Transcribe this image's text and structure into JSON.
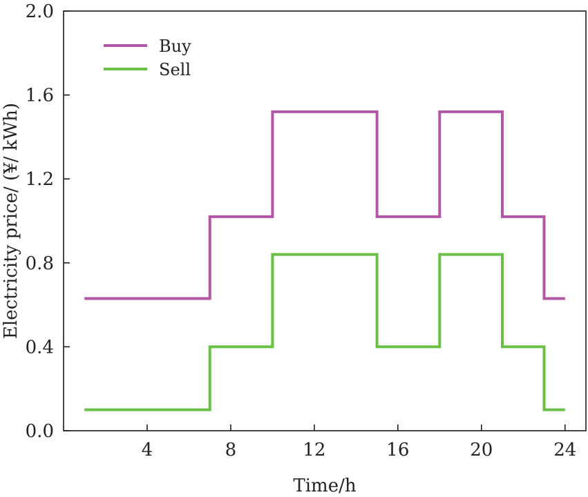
{
  "chart_data": {
    "type": "line",
    "step": true,
    "xlabel": "Time/h",
    "ylabel": "Electricity price/ (¥/ kWh)",
    "xlim": [
      0,
      25
    ],
    "ylim": [
      0,
      2.0
    ],
    "xticks": [
      4,
      8,
      12,
      16,
      20,
      24
    ],
    "yticks": [
      0.0,
      0.4,
      0.8,
      1.2,
      1.6,
      2.0
    ],
    "ytick_labels": [
      "0.0",
      "0.4",
      "0.8",
      "1.2",
      "1.6",
      "2.0"
    ],
    "grid": false,
    "legend_position": "top-left",
    "series": [
      {
        "name": "Buy",
        "color": "#b256a6",
        "x": [
          1,
          7,
          7,
          10,
          10,
          15,
          15,
          18,
          18,
          21,
          21,
          23,
          23,
          24
        ],
        "y": [
          0.63,
          0.63,
          1.02,
          1.02,
          1.52,
          1.52,
          1.02,
          1.02,
          1.52,
          1.52,
          1.02,
          1.02,
          0.63,
          0.63
        ]
      },
      {
        "name": "Sell",
        "color": "#6abf45",
        "x": [
          1,
          7,
          7,
          10,
          10,
          15,
          15,
          18,
          18,
          21,
          21,
          23,
          23,
          24
        ],
        "y": [
          0.1,
          0.1,
          0.4,
          0.4,
          0.84,
          0.84,
          0.4,
          0.4,
          0.84,
          0.84,
          0.4,
          0.4,
          0.1,
          0.1
        ]
      }
    ]
  }
}
